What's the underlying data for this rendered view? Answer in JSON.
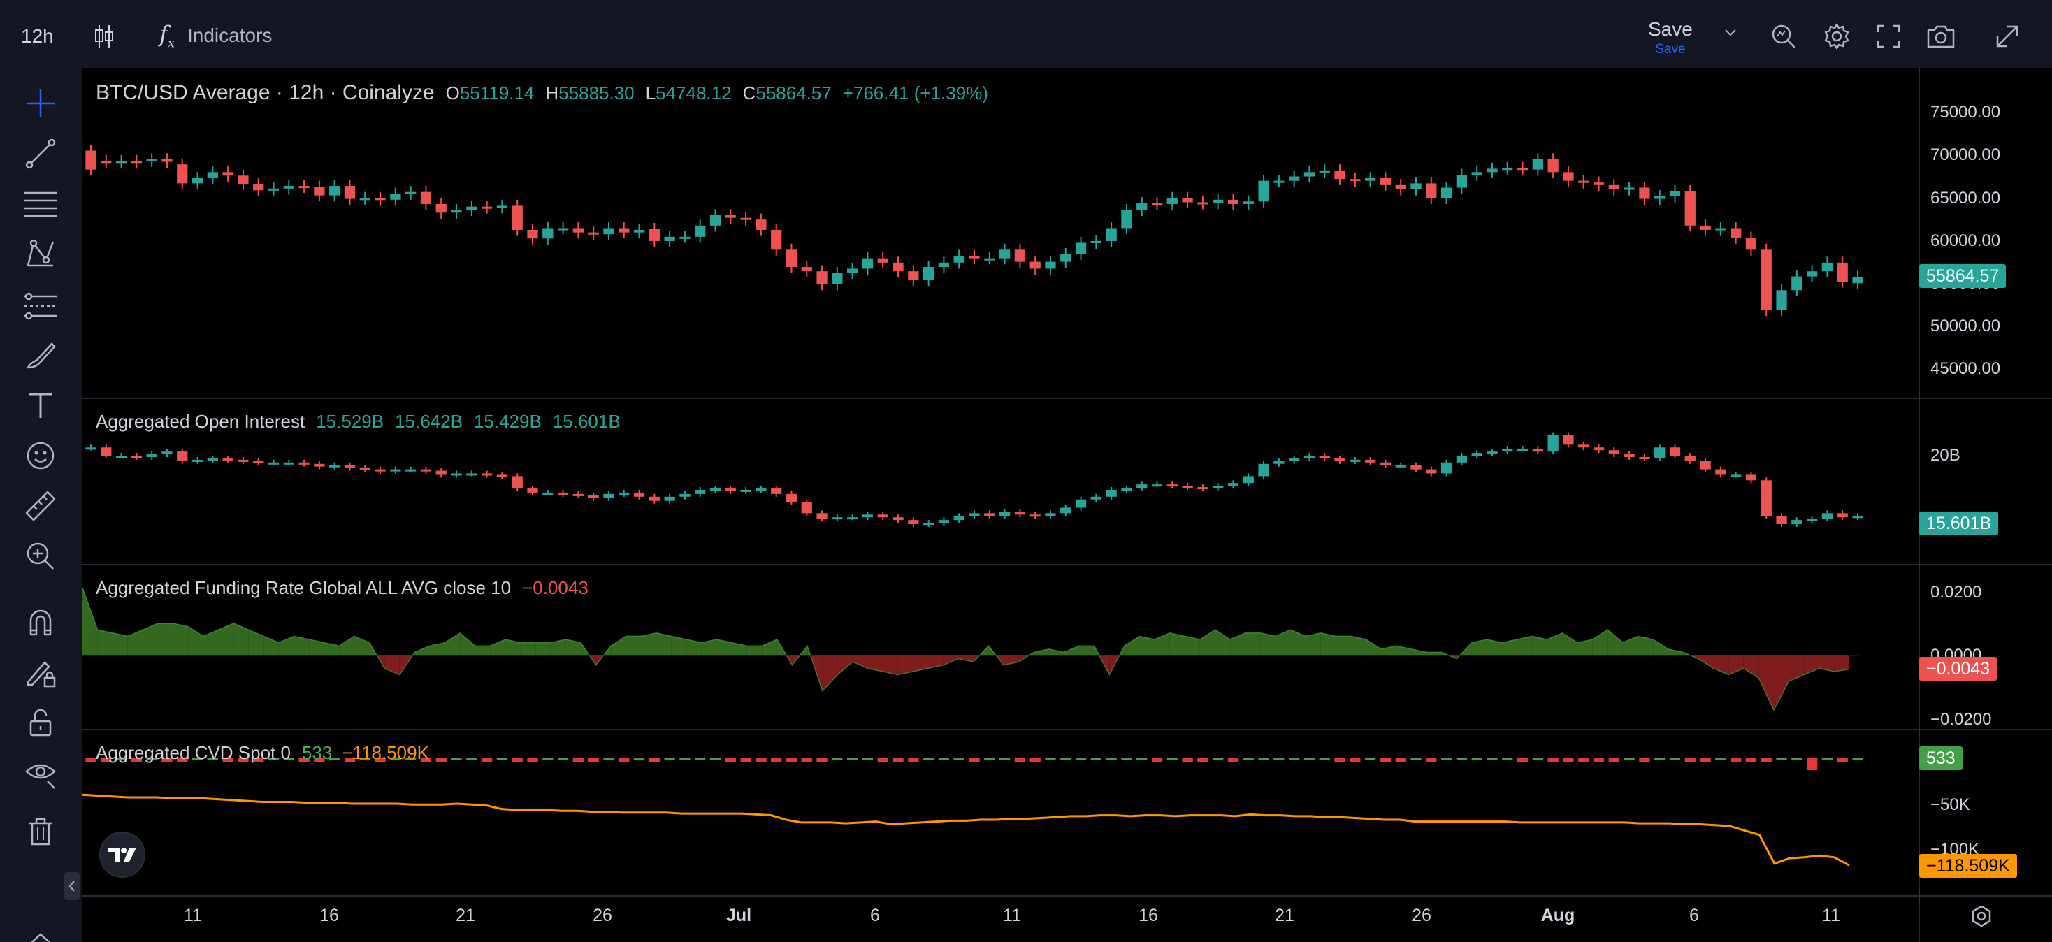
{
  "toolbar": {
    "interval": "12h",
    "indicators_label": "Indicators",
    "save_label": "Save",
    "save_sub_label": "Save"
  },
  "sidebar": {
    "tools": [
      "crosshair-icon",
      "trend-line-icon",
      "fib-lines-icon",
      "pattern-icon",
      "forecast-icon",
      "brush-icon",
      "text-icon",
      "emoji-icon",
      "ruler-icon",
      "zoom-in-icon",
      "magnet-icon",
      "lock-drawing-icon",
      "unlock-icon",
      "eye-icon",
      "trash-icon"
    ]
  },
  "panes": {
    "price": {
      "title": "BTC/USD Average · 12h · Coinalyze",
      "o_label": "O",
      "o": "55119.14",
      "h_label": "H",
      "h": "55885.30",
      "l_label": "L",
      "l": "54748.12",
      "c_label": "C",
      "c": "55864.57",
      "change": "+766.41 (+1.39%)",
      "last": "55864.57",
      "axis": [
        "75000.00",
        "70000.00",
        "65000.00",
        "60000.00",
        "55000.00",
        "50000.00",
        "45000.00"
      ]
    },
    "oi": {
      "title": "Aggregated Open Interest",
      "values": [
        "15.529B",
        "15.642B",
        "15.429B",
        "15.601B"
      ],
      "last": "15.601B",
      "axis": [
        "20B",
        "15B"
      ]
    },
    "funding": {
      "title": "Aggregated Funding Rate Global ALL AVG close 10",
      "value": "−0.0043",
      "last": "−0.0043",
      "axis": [
        "0.0200",
        "0.0000",
        "−0.0200"
      ]
    },
    "cvd": {
      "title": "Aggregated CVD Spot 0",
      "value1": "533",
      "value2": "−118.509K",
      "last1": "533",
      "last2": "−118.509K",
      "axis": [
        "−50K",
        "−100K"
      ]
    }
  },
  "xaxis": {
    "labels": [
      "11",
      "16",
      "21",
      "26",
      "Jul",
      "6",
      "11",
      "16",
      "21",
      "26",
      "Aug",
      "6",
      "11"
    ]
  },
  "colors": {
    "up": "#26a69a",
    "down": "#ef5350",
    "cvd_line": "#ff9800",
    "funding_pos": "#4caf50",
    "funding_neg": "#b71c1c"
  },
  "chart_data": {
    "type": "candlestick",
    "title": "BTC/USD Average · 12h · Coinalyze",
    "price_ylim": [
      42000,
      78000
    ],
    "x_labels": [
      "11",
      "16",
      "21",
      "26",
      "Jul",
      "6",
      "11",
      "16",
      "21",
      "26",
      "Aug",
      "6",
      "11"
    ],
    "candles": [
      {
        "o": 70500,
        "c": 68300
      },
      {
        "o": 69300,
        "c": 69200
      },
      {
        "o": 69200,
        "c": 69300
      },
      {
        "o": 69300,
        "c": 69100
      },
      {
        "o": 69300,
        "c": 69500
      },
      {
        "o": 69500,
        "c": 69200
      },
      {
        "o": 68900,
        "c": 66700
      },
      {
        "o": 66700,
        "c": 67300
      },
      {
        "o": 67300,
        "c": 68000
      },
      {
        "o": 68000,
        "c": 67600
      },
      {
        "o": 67600,
        "c": 66600
      },
      {
        "o": 66600,
        "c": 65900
      },
      {
        "o": 66000,
        "c": 66100
      },
      {
        "o": 66100,
        "c": 66400
      },
      {
        "o": 66400,
        "c": 66300
      },
      {
        "o": 66300,
        "c": 65300
      },
      {
        "o": 65300,
        "c": 66400
      },
      {
        "o": 66400,
        "c": 64900
      },
      {
        "o": 64900,
        "c": 65000
      },
      {
        "o": 65000,
        "c": 64800
      },
      {
        "o": 64800,
        "c": 65500
      },
      {
        "o": 65500,
        "c": 65700
      },
      {
        "o": 65700,
        "c": 64300
      },
      {
        "o": 64300,
        "c": 63300
      },
      {
        "o": 63300,
        "c": 63600
      },
      {
        "o": 63600,
        "c": 64000
      },
      {
        "o": 64000,
        "c": 63900
      },
      {
        "o": 63900,
        "c": 64100
      },
      {
        "o": 64100,
        "c": 61300
      },
      {
        "o": 61300,
        "c": 60300
      },
      {
        "o": 60300,
        "c": 61500
      },
      {
        "o": 61500,
        "c": 61500
      },
      {
        "o": 61500,
        "c": 61000
      },
      {
        "o": 61000,
        "c": 60800
      },
      {
        "o": 60800,
        "c": 61500
      },
      {
        "o": 61500,
        "c": 61000
      },
      {
        "o": 61000,
        "c": 61300
      },
      {
        "o": 61400,
        "c": 60000
      },
      {
        "o": 60000,
        "c": 60500
      },
      {
        "o": 60500,
        "c": 60500
      },
      {
        "o": 60500,
        "c": 61800
      },
      {
        "o": 61800,
        "c": 63000
      },
      {
        "o": 63000,
        "c": 62700
      },
      {
        "o": 62700,
        "c": 62500
      },
      {
        "o": 62500,
        "c": 61300
      },
      {
        "o": 61300,
        "c": 59000
      },
      {
        "o": 59000,
        "c": 57000
      },
      {
        "o": 57000,
        "c": 56500
      },
      {
        "o": 56500,
        "c": 55000
      },
      {
        "o": 55000,
        "c": 56300
      },
      {
        "o": 56300,
        "c": 56800
      },
      {
        "o": 56800,
        "c": 58000
      },
      {
        "o": 58000,
        "c": 57500
      },
      {
        "o": 57500,
        "c": 56500
      },
      {
        "o": 56500,
        "c": 55500
      },
      {
        "o": 55500,
        "c": 57000
      },
      {
        "o": 57000,
        "c": 57500
      },
      {
        "o": 57500,
        "c": 58300
      },
      {
        "o": 58300,
        "c": 58000
      },
      {
        "o": 58000,
        "c": 58000
      },
      {
        "o": 58000,
        "c": 59000
      },
      {
        "o": 59000,
        "c": 57600
      },
      {
        "o": 57600,
        "c": 56800
      },
      {
        "o": 56800,
        "c": 57600
      },
      {
        "o": 57600,
        "c": 58500
      },
      {
        "o": 58500,
        "c": 59800
      },
      {
        "o": 59800,
        "c": 60000
      },
      {
        "o": 60000,
        "c": 61500
      },
      {
        "o": 61500,
        "c": 63600
      },
      {
        "o": 63600,
        "c": 64400
      },
      {
        "o": 64400,
        "c": 64300
      },
      {
        "o": 64300,
        "c": 65000
      },
      {
        "o": 65000,
        "c": 64500
      },
      {
        "o": 64500,
        "c": 64400
      },
      {
        "o": 64400,
        "c": 64800
      },
      {
        "o": 64800,
        "c": 64300
      },
      {
        "o": 64300,
        "c": 64600
      },
      {
        "o": 64600,
        "c": 67000
      },
      {
        "o": 67000,
        "c": 67000
      },
      {
        "o": 67000,
        "c": 67500
      },
      {
        "o": 67500,
        "c": 68000
      },
      {
        "o": 68000,
        "c": 68200
      },
      {
        "o": 68200,
        "c": 67200
      },
      {
        "o": 67200,
        "c": 67000
      },
      {
        "o": 67000,
        "c": 67300
      },
      {
        "o": 67300,
        "c": 66500
      },
      {
        "o": 66500,
        "c": 66000
      },
      {
        "o": 66000,
        "c": 66700
      },
      {
        "o": 66700,
        "c": 65000
      },
      {
        "o": 65000,
        "c": 66200
      },
      {
        "o": 66200,
        "c": 67700
      },
      {
        "o": 67700,
        "c": 68000
      },
      {
        "o": 68000,
        "c": 68400
      },
      {
        "o": 68400,
        "c": 68500
      },
      {
        "o": 68500,
        "c": 68300
      },
      {
        "o": 68300,
        "c": 69500
      },
      {
        "o": 69500,
        "c": 68000
      },
      {
        "o": 68000,
        "c": 67000
      },
      {
        "o": 67000,
        "c": 66800
      },
      {
        "o": 66800,
        "c": 66500
      },
      {
        "o": 66500,
        "c": 66000
      },
      {
        "o": 66000,
        "c": 66200
      },
      {
        "o": 66200,
        "c": 64900
      },
      {
        "o": 64900,
        "c": 65200
      },
      {
        "o": 65200,
        "c": 65800
      },
      {
        "o": 65800,
        "c": 61800
      },
      {
        "o": 61800,
        "c": 61300
      },
      {
        "o": 61300,
        "c": 61500
      },
      {
        "o": 61500,
        "c": 60400
      },
      {
        "o": 60400,
        "c": 59000
      },
      {
        "o": 59000,
        "c": 52000
      },
      {
        "o": 52000,
        "c": 54300
      },
      {
        "o": 54300,
        "c": 55900
      },
      {
        "o": 55900,
        "c": 56500
      },
      {
        "o": 56500,
        "c": 57500
      },
      {
        "o": 57500,
        "c": 55300
      },
      {
        "o": 55119,
        "c": 55865
      }
    ],
    "open_interest": [
      20.6,
      20.0,
      20.0,
      19.9,
      20.1,
      20.3,
      19.6,
      19.7,
      19.8,
      19.7,
      19.6,
      19.5,
      19.5,
      19.5,
      19.4,
      19.2,
      19.3,
      19.1,
      19.0,
      18.9,
      19.0,
      19.0,
      18.9,
      18.6,
      18.7,
      18.7,
      18.6,
      18.5,
      17.6,
      17.3,
      17.3,
      17.2,
      17.1,
      16.9,
      17.2,
      17.3,
      17.0,
      16.7,
      17.0,
      17.2,
      17.5,
      17.6,
      17.4,
      17.5,
      17.6,
      17.2,
      16.6,
      15.8,
      15.4,
      15.5,
      15.5,
      15.7,
      15.5,
      15.3,
      15.0,
      15.1,
      15.3,
      15.6,
      15.8,
      15.6,
      15.9,
      15.7,
      15.6,
      15.8,
      16.2,
      16.8,
      17.0,
      17.5,
      17.6,
      17.9,
      17.9,
      17.8,
      17.7,
      17.6,
      17.8,
      18.0,
      18.5,
      19.4,
      19.6,
      19.8,
      20.0,
      19.8,
      19.6,
      19.7,
      19.5,
      19.3,
      19.3,
      19.0,
      18.7,
      19.5,
      20.0,
      20.2,
      20.3,
      20.5,
      20.5,
      20.3,
      21.5,
      20.8,
      20.6,
      20.4,
      20.1,
      19.9,
      19.8,
      20.6,
      20.0,
      19.6,
      19.0,
      18.6,
      18.6,
      18.2,
      15.6,
      15.0,
      15.3,
      15.4,
      15.8,
      15.5,
      15.6
    ],
    "funding_rate": [
      0.021,
      0.008,
      0.007,
      0.006,
      0.008,
      0.01,
      0.01,
      0.009,
      0.006,
      0.008,
      0.01,
      0.008,
      0.006,
      0.004,
      0.006,
      0.005,
      0.004,
      0.003,
      0.006,
      0.004,
      -0.004,
      -0.006,
      0.001,
      0.003,
      0.004,
      0.007,
      0.003,
      0.003,
      0.005,
      0.004,
      0.004,
      0.004,
      0.005,
      0.004,
      -0.003,
      0.003,
      0.006,
      0.006,
      0.007,
      0.006,
      0.005,
      0.004,
      0.005,
      0.004,
      0.003,
      0.003,
      0.005,
      -0.003,
      0.003,
      -0.011,
      -0.006,
      -0.002,
      -0.004,
      -0.005,
      -0.006,
      -0.005,
      -0.004,
      -0.003,
      -0.001,
      -0.002,
      0.003,
      -0.003,
      -0.002,
      0.001,
      0.002,
      0.001,
      0.003,
      0.003,
      -0.006,
      0.003,
      0.006,
      0.005,
      0.007,
      0.006,
      0.005,
      0.008,
      0.005,
      0.007,
      0.007,
      0.006,
      0.008,
      0.006,
      0.007,
      0.006,
      0.006,
      0.005,
      0.002,
      0.003,
      0.002,
      0.001,
      0.001,
      -0.001,
      0.004,
      0.005,
      0.004,
      0.005,
      0.006,
      0.005,
      0.007,
      0.004,
      0.005,
      0.008,
      0.004,
      0.006,
      0.005,
      0.002,
      0.001,
      -0.001,
      -0.004,
      -0.006,
      -0.004,
      -0.007,
      -0.017,
      -0.008,
      -0.006,
      -0.004,
      -0.005,
      -0.0043
    ],
    "cvd": [
      -40,
      -41,
      -42,
      -43,
      -43,
      -43,
      -44,
      -44,
      -44,
      -45,
      -46,
      -47,
      -48,
      -48,
      -48,
      -49,
      -49,
      -49,
      -50,
      -50,
      -50,
      -50,
      -51,
      -51,
      -51,
      -50,
      -51,
      -52,
      -56,
      -57,
      -57,
      -57,
      -58,
      -58,
      -59,
      -59,
      -60,
      -60,
      -60,
      -60,
      -61,
      -61,
      -61,
      -61,
      -61,
      -62,
      -63,
      -68,
      -71,
      -71,
      -71,
      -72,
      -71,
      -70,
      -73,
      -72,
      -71,
      -70,
      -69,
      -69,
      -68,
      -68,
      -67,
      -67,
      -66,
      -65,
      -64,
      -64,
      -63,
      -63,
      -64,
      -63,
      -63,
      -64,
      -63,
      -63,
      -63,
      -64,
      -62,
      -63,
      -63,
      -64,
      -64,
      -65,
      -65,
      -66,
      -67,
      -68,
      -68,
      -70,
      -70,
      -70,
      -70,
      -70,
      -70,
      -70,
      -71,
      -71,
      -71,
      -71,
      -71,
      -71,
      -71,
      -71,
      -72,
      -72,
      -72,
      -73,
      -73,
      -74,
      -75,
      -80,
      -85,
      -117,
      -111,
      -110,
      -108,
      -110,
      -119
    ]
  }
}
